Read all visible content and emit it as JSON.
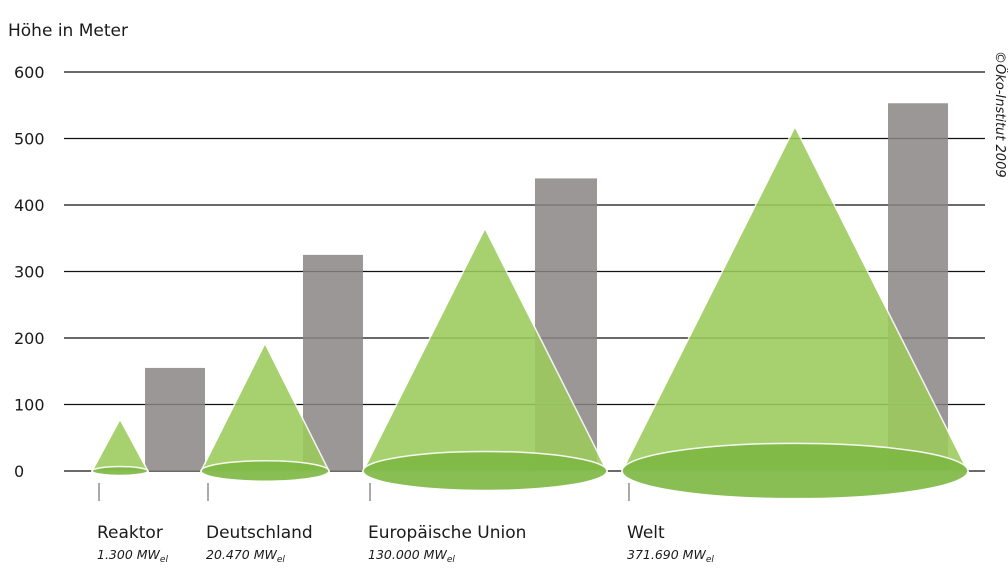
{
  "chart_data": {
    "type": "area",
    "ylabel": "Höhe in Meter",
    "ylim": [
      0,
      600
    ],
    "yticks": [
      0,
      100,
      200,
      300,
      400,
      500,
      600
    ],
    "grid": true,
    "credit": "©Öko-Institut 2009",
    "categories": [
      {
        "label": "Reaktor",
        "capacity": "1.300",
        "unit": "MW",
        "unit_sub": "el",
        "cone_height": 78,
        "bar_height": 155
      },
      {
        "label": "Deutschland",
        "capacity": "20.470",
        "unit": "MW",
        "unit_sub": "el",
        "cone_height": 192,
        "bar_height": 325
      },
      {
        "label": "Europäische Union",
        "capacity": "130.000",
        "unit": "MW",
        "unit_sub": "el",
        "cone_height": 365,
        "bar_height": 440
      },
      {
        "label": "Welt",
        "capacity": "371.690",
        "unit": "MW",
        "unit_sub": "el",
        "cone_height": 518,
        "bar_height": 553
      }
    ],
    "colors": {
      "cone": "#9ccb5c",
      "cone_dark": "#7db843",
      "bar": "#8b8585",
      "grid": "#111111"
    }
  }
}
